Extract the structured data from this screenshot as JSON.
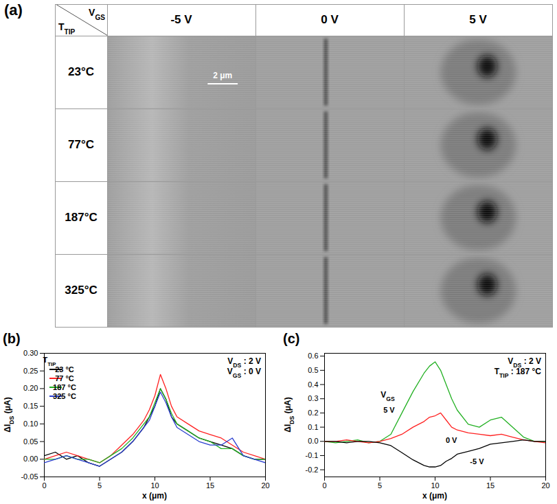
{
  "image_grid": {
    "title": "(a)",
    "column_header": [
      {
        "text": "V"
      },
      {
        "text": "GS",
        "sub": true
      }
    ],
    "row_header": [
      {
        "text": "T"
      },
      {
        "text": "TIP",
        "sub": true
      }
    ],
    "columns": [
      "-5 V",
      "0 V",
      "5 V"
    ],
    "rows": [
      "23°C",
      "77°C",
      "187°C",
      "325°C"
    ],
    "scale_bar": "2 μm"
  },
  "chart_data": [
    {
      "type": "line",
      "title": "(b)",
      "xlabel": "x (μm)",
      "ylabel": [
        {
          "text": "ΔI"
        },
        {
          "text": "DS",
          "sub": true
        },
        {
          "text": " (μA)"
        }
      ],
      "x": [
        0,
        1,
        2,
        3,
        4,
        5,
        6,
        7,
        8,
        9,
        9.5,
        10,
        10.5,
        11,
        11.5,
        12,
        13,
        14,
        15,
        16,
        17,
        18,
        19,
        20
      ],
      "xlim": [
        0,
        20
      ],
      "xticks": [
        0,
        5,
        10,
        15,
        20
      ],
      "ylim": [
        -0.05,
        0.3
      ],
      "yticks": [
        {
          "value": -0.05,
          "label": "-0.05"
        },
        {
          "value": 0,
          "label": "0.00"
        },
        {
          "value": 0.05,
          "label": "0.05"
        },
        {
          "value": 0.1,
          "label": "0.10"
        },
        {
          "value": 0.15,
          "label": "0.15"
        },
        {
          "value": 0.2,
          "label": "0.20"
        },
        {
          "value": 0.25,
          "label": "0.25"
        },
        {
          "value": 0.3,
          "label": "0.30"
        }
      ],
      "legend": "top-left",
      "legend_title": [
        {
          "text": "T"
        },
        {
          "text": "TIP",
          "sub": true
        }
      ],
      "annotations": [
        [
          {
            "text": "V"
          },
          {
            "text": "DS",
            "sub": true
          },
          {
            "text": " : 2 V"
          }
        ],
        [
          {
            "text": "V"
          },
          {
            "text": "GS",
            "sub": true
          },
          {
            "text": " : 0 V"
          }
        ]
      ],
      "series": [
        {
          "name": "23 °C",
          "color": "#000000",
          "values": [
            0.01,
            0.02,
            0.0,
            0.01,
            -0.01,
            -0.02,
            0.0,
            0.02,
            0.05,
            0.09,
            0.12,
            0.15,
            0.2,
            0.17,
            0.12,
            0.1,
            0.08,
            0.06,
            0.05,
            0.04,
            0.03,
            0.01,
            0.0,
            0.0
          ]
        },
        {
          "name": "77 °C",
          "color": "#ff2020",
          "values": [
            0.0,
            0.01,
            0.02,
            0.01,
            0.0,
            -0.01,
            0.01,
            0.04,
            0.07,
            0.11,
            0.14,
            0.18,
            0.24,
            0.2,
            0.15,
            0.12,
            0.1,
            0.08,
            0.07,
            0.06,
            0.04,
            0.02,
            0.01,
            0.0
          ]
        },
        {
          "name": "187 °C",
          "color": "#22b022",
          "values": [
            0.0,
            0.0,
            0.01,
            0.0,
            0.0,
            -0.01,
            0.01,
            0.03,
            0.06,
            0.1,
            0.12,
            0.16,
            0.2,
            0.17,
            0.13,
            0.1,
            0.08,
            0.06,
            0.05,
            0.03,
            0.03,
            0.01,
            0.0,
            0.0
          ]
        },
        {
          "name": "325 °C",
          "color": "#2a3fd0",
          "values": [
            -0.01,
            0.0,
            0.01,
            0.0,
            -0.01,
            -0.02,
            0.0,
            0.02,
            0.05,
            0.09,
            0.11,
            0.15,
            0.19,
            0.16,
            0.12,
            0.09,
            0.07,
            0.05,
            0.04,
            0.04,
            0.06,
            0.01,
            0.0,
            -0.01
          ]
        }
      ]
    },
    {
      "type": "line",
      "title": "(c)",
      "xlabel": "x (μm)",
      "ylabel": [
        {
          "text": "ΔI"
        },
        {
          "text": "DS",
          "sub": true
        },
        {
          "text": " (μA)"
        }
      ],
      "x": [
        0,
        1,
        2,
        3,
        4,
        5,
        6,
        7,
        8,
        9,
        9.5,
        10,
        10.5,
        11,
        11.5,
        12,
        13,
        14,
        15,
        16,
        17,
        18,
        19,
        20
      ],
      "xlim": [
        0,
        20
      ],
      "xticks": [
        0,
        5,
        10,
        15,
        20
      ],
      "ylim": [
        -0.25,
        0.62
      ],
      "yticks": [
        {
          "value": -0.2,
          "label": "-0.2"
        },
        {
          "value": -0.1,
          "label": "-0.1"
        },
        {
          "value": 0,
          "label": "0.0"
        },
        {
          "value": 0.1,
          "label": "0.1"
        },
        {
          "value": 0.2,
          "label": "0.2"
        },
        {
          "value": 0.3,
          "label": "0.3"
        },
        {
          "value": 0.4,
          "label": "0.4"
        },
        {
          "value": 0.5,
          "label": "0.5"
        },
        {
          "value": 0.6,
          "label": "0.6"
        }
      ],
      "legend_title": [
        {
          "text": "V"
        },
        {
          "text": "GS",
          "sub": true
        }
      ],
      "annotations": [
        [
          {
            "text": "V"
          },
          {
            "text": "DS",
            "sub": true
          },
          {
            "text": " : 2 V"
          }
        ],
        [
          {
            "text": "T"
          },
          {
            "text": "TIP",
            "sub": true
          },
          {
            "text": " : 187 °C"
          }
        ]
      ],
      "series": [
        {
          "name": "5 V",
          "color": "#22b022",
          "values": [
            0.0,
            -0.01,
            0.0,
            0.01,
            -0.01,
            0.0,
            0.05,
            0.2,
            0.35,
            0.48,
            0.53,
            0.56,
            0.5,
            0.4,
            0.3,
            0.22,
            0.12,
            0.1,
            0.15,
            0.17,
            0.1,
            0.03,
            0.0,
            0.0
          ]
        },
        {
          "name": "0 V",
          "color": "#ff2020",
          "values": [
            0.0,
            0.0,
            0.01,
            0.0,
            -0.01,
            0.0,
            0.02,
            0.05,
            0.1,
            0.14,
            0.17,
            0.18,
            0.2,
            0.15,
            0.1,
            0.08,
            0.06,
            0.05,
            0.04,
            0.05,
            0.03,
            0.01,
            0.0,
            -0.01
          ]
        },
        {
          "name": "-5 V",
          "color": "#000000",
          "values": [
            0.0,
            0.0,
            -0.01,
            0.0,
            0.0,
            -0.01,
            -0.03,
            -0.08,
            -0.13,
            -0.17,
            -0.18,
            -0.18,
            -0.17,
            -0.14,
            -0.12,
            -0.09,
            -0.07,
            -0.05,
            -0.02,
            -0.01,
            0.0,
            0.01,
            0.0,
            0.0
          ]
        }
      ]
    }
  ]
}
